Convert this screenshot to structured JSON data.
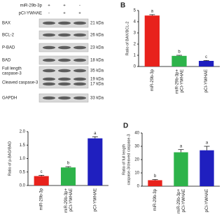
{
  "blot": {
    "treatments": [
      {
        "name": "miR-29b-3p",
        "signs": [
          "+",
          "+",
          "-"
        ]
      },
      {
        "name": "pCI-YWHAE",
        "signs": [
          "-",
          "+",
          "+"
        ]
      }
    ],
    "rows": [
      {
        "labels": [
          "BAX"
        ],
        "kda": [
          "21 kDa"
        ]
      },
      {
        "labels": [
          "BCL-2"
        ],
        "kda": [
          "26 kDa"
        ]
      },
      {
        "labels": [
          "P-BAD"
        ],
        "kda": [
          "23 kDa"
        ]
      },
      {
        "labels": [
          "BAD"
        ],
        "kda": [
          "18 kDa"
        ]
      },
      {
        "labels": [
          "Full length",
          "caspase-3",
          "Cleaved caspase-3"
        ],
        "kda": [
          "35 kDa",
          "19 kDa",
          "17 kDa"
        ]
      },
      {
        "labels": [
          "GAPDH"
        ],
        "kda": [
          "33 kDa"
        ]
      }
    ]
  },
  "chart_data": [
    {
      "type": "bar",
      "panel_label": "B",
      "y_label": "Ratio of BAX/BCL-2",
      "categories": [
        "miR-29b-3p",
        "miR-29b-3p+\npCI-YWHAE",
        "pCI-YWHAE"
      ],
      "values": [
        4.55,
        0.95,
        0.5
      ],
      "errors": [
        0.08,
        0.05,
        0.04
      ],
      "colors": [
        "#e8221c",
        "#2db34a",
        "#1f1fbf"
      ],
      "annotations": [
        "a",
        "b",
        "c"
      ],
      "ylim": [
        0,
        5
      ],
      "yticks": [
        0,
        1,
        2,
        3,
        4,
        5
      ]
    },
    {
      "type": "bar",
      "y_label": "Ratio of p-BAD/BAD",
      "categories": [
        "miR-29b-3p",
        "miR-29b-3p+\npCI-YWHAE",
        "pCI-YWHAE"
      ],
      "values": [
        0.35,
        0.67,
        1.75
      ],
      "errors": [
        0.03,
        0.03,
        0.06
      ],
      "colors": [
        "#e8221c",
        "#2db34a",
        "#1f1fbf"
      ],
      "annotations": [
        "c",
        "b",
        "a"
      ],
      "ylim": [
        0,
        2
      ],
      "yticks": [
        {
          "value": 0,
          "label": "0.0"
        },
        0.5,
        {
          "value": 1,
          "label": "1.0"
        },
        1.5,
        {
          "value": 2,
          "label": "2.0"
        }
      ]
    },
    {
      "type": "bar",
      "panel_label": "D",
      "y_label": "Ratio of full length\ncaspase-3/cleaved caspase-3",
      "categories": [
        "miR-29b-3p",
        "miR-29b-3p+\npCI-YWHAE",
        "pCI-YWHAE"
      ],
      "values": [
        4.5,
        25.5,
        27
      ],
      "errors": [
        0.5,
        2,
        3
      ],
      "colors": [
        "#e8221c",
        "#2db34a",
        "#1f1fbf"
      ],
      "annotations": [
        "b",
        "a",
        "a"
      ],
      "ylim": [
        0,
        40
      ],
      "yticks": [
        0,
        10,
        20,
        30,
        40
      ]
    }
  ]
}
